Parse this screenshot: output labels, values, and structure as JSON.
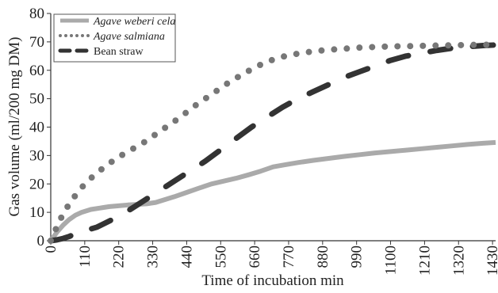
{
  "chart_data": {
    "type": "line",
    "xlabel": "Time of incubation min",
    "ylabel": "Gas volume (ml/200 mg DM)",
    "xlim": [
      0,
      1440
    ],
    "ylim": [
      0,
      80
    ],
    "x_ticks": [
      "0",
      "110",
      "220",
      "330",
      "440",
      "550",
      "660",
      "770",
      "880",
      "990",
      "1100",
      "1210",
      "1320",
      "1430"
    ],
    "y_ticks": [
      "0",
      "10",
      "20",
      "30",
      "40",
      "50",
      "60",
      "70",
      "80"
    ],
    "grid": false,
    "legend_position": "top-left",
    "series": [
      {
        "name": "Agave weberi cela",
        "style": "solid",
        "color": "#aaaaaa",
        "italic": true,
        "x": [
          0,
          20,
          40,
          60,
          80,
          100,
          130,
          160,
          190,
          220,
          250,
          280,
          310,
          340,
          370,
          400,
          440,
          480,
          520,
          560,
          600,
          640,
          680,
          720,
          760,
          800,
          850,
          900,
          950,
          1000,
          1050,
          1100,
          1150,
          1200,
          1250,
          1300,
          1350,
          1400,
          1440
        ],
        "y": [
          0,
          3,
          5.5,
          7.5,
          9,
          10,
          11,
          11.5,
          12,
          12.3,
          12.6,
          12.8,
          13,
          13.5,
          14.5,
          15.5,
          17,
          18.5,
          20,
          21,
          22,
          23.2,
          24.5,
          26,
          26.8,
          27.5,
          28.3,
          29,
          29.7,
          30.3,
          30.9,
          31.4,
          31.9,
          32.4,
          32.9,
          33.4,
          33.9,
          34.3,
          34.6
        ]
      },
      {
        "name": "Agave salmiana",
        "style": "dotted",
        "color": "#777777",
        "italic": true,
        "x": [
          0,
          20,
          40,
          60,
          80,
          110,
          140,
          180,
          220,
          260,
          300,
          340,
          380,
          420,
          460,
          500,
          540,
          580,
          620,
          660,
          700,
          740,
          780,
          820,
          860,
          900,
          950,
          1000,
          1050,
          1100,
          1150,
          1200,
          1250,
          1300,
          1350,
          1400,
          1440
        ],
        "y": [
          0,
          5,
          9.5,
          13,
          16,
          20,
          23,
          26.5,
          29.5,
          32,
          34.5,
          37.5,
          40.5,
          43.5,
          47,
          50,
          53,
          56,
          58.5,
          61,
          63,
          64.5,
          65.5,
          66.2,
          66.8,
          67.2,
          67.6,
          68,
          68.2,
          68.4,
          68.5,
          68.6,
          68.7,
          68.8,
          68.9,
          69,
          69
        ]
      },
      {
        "name": "Bean straw",
        "style": "dashed",
        "color": "#333333",
        "italic": false,
        "x": [
          0,
          20,
          40,
          60,
          80,
          110,
          150,
          200,
          250,
          300,
          350,
          400,
          450,
          500,
          550,
          600,
          650,
          700,
          750,
          800,
          850,
          900,
          950,
          1000,
          1050,
          1100,
          1150,
          1200,
          1250,
          1300,
          1350,
          1400,
          1440
        ],
        "y": [
          0,
          0.3,
          0.8,
          1.5,
          2.5,
          3.5,
          4.8,
          7.5,
          10.5,
          14,
          17.5,
          21,
          24.5,
          28,
          32,
          36,
          40,
          43.5,
          47,
          50,
          52.5,
          55,
          57.5,
          59.5,
          61.5,
          63.5,
          65,
          66,
          67,
          67.8,
          68.3,
          68.7,
          68.9
        ]
      }
    ]
  }
}
